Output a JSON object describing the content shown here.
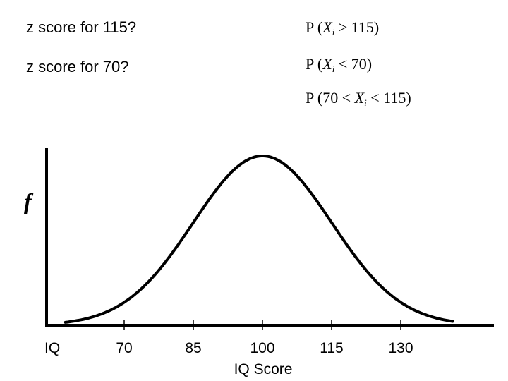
{
  "questions": {
    "q1": "z score for 115?",
    "q2": "z score for 70?"
  },
  "probabilities": [
    {
      "prefix": "P (",
      "var": "X",
      "sub": "i",
      "suffix": " > 115)"
    },
    {
      "prefix": "P (",
      "var": "X",
      "sub": "i",
      "suffix": " < 70)"
    },
    {
      "prefix": "P (70 < ",
      "var": "X",
      "sub": "i",
      "suffix": " < 115)"
    }
  ],
  "diagram": {
    "y_label": "f",
    "x_row_label": "IQ",
    "x_title": "IQ Score",
    "ticks": [
      "70",
      "85",
      "100",
      "115",
      "130"
    ],
    "mean": 100,
    "sd": 15
  }
}
